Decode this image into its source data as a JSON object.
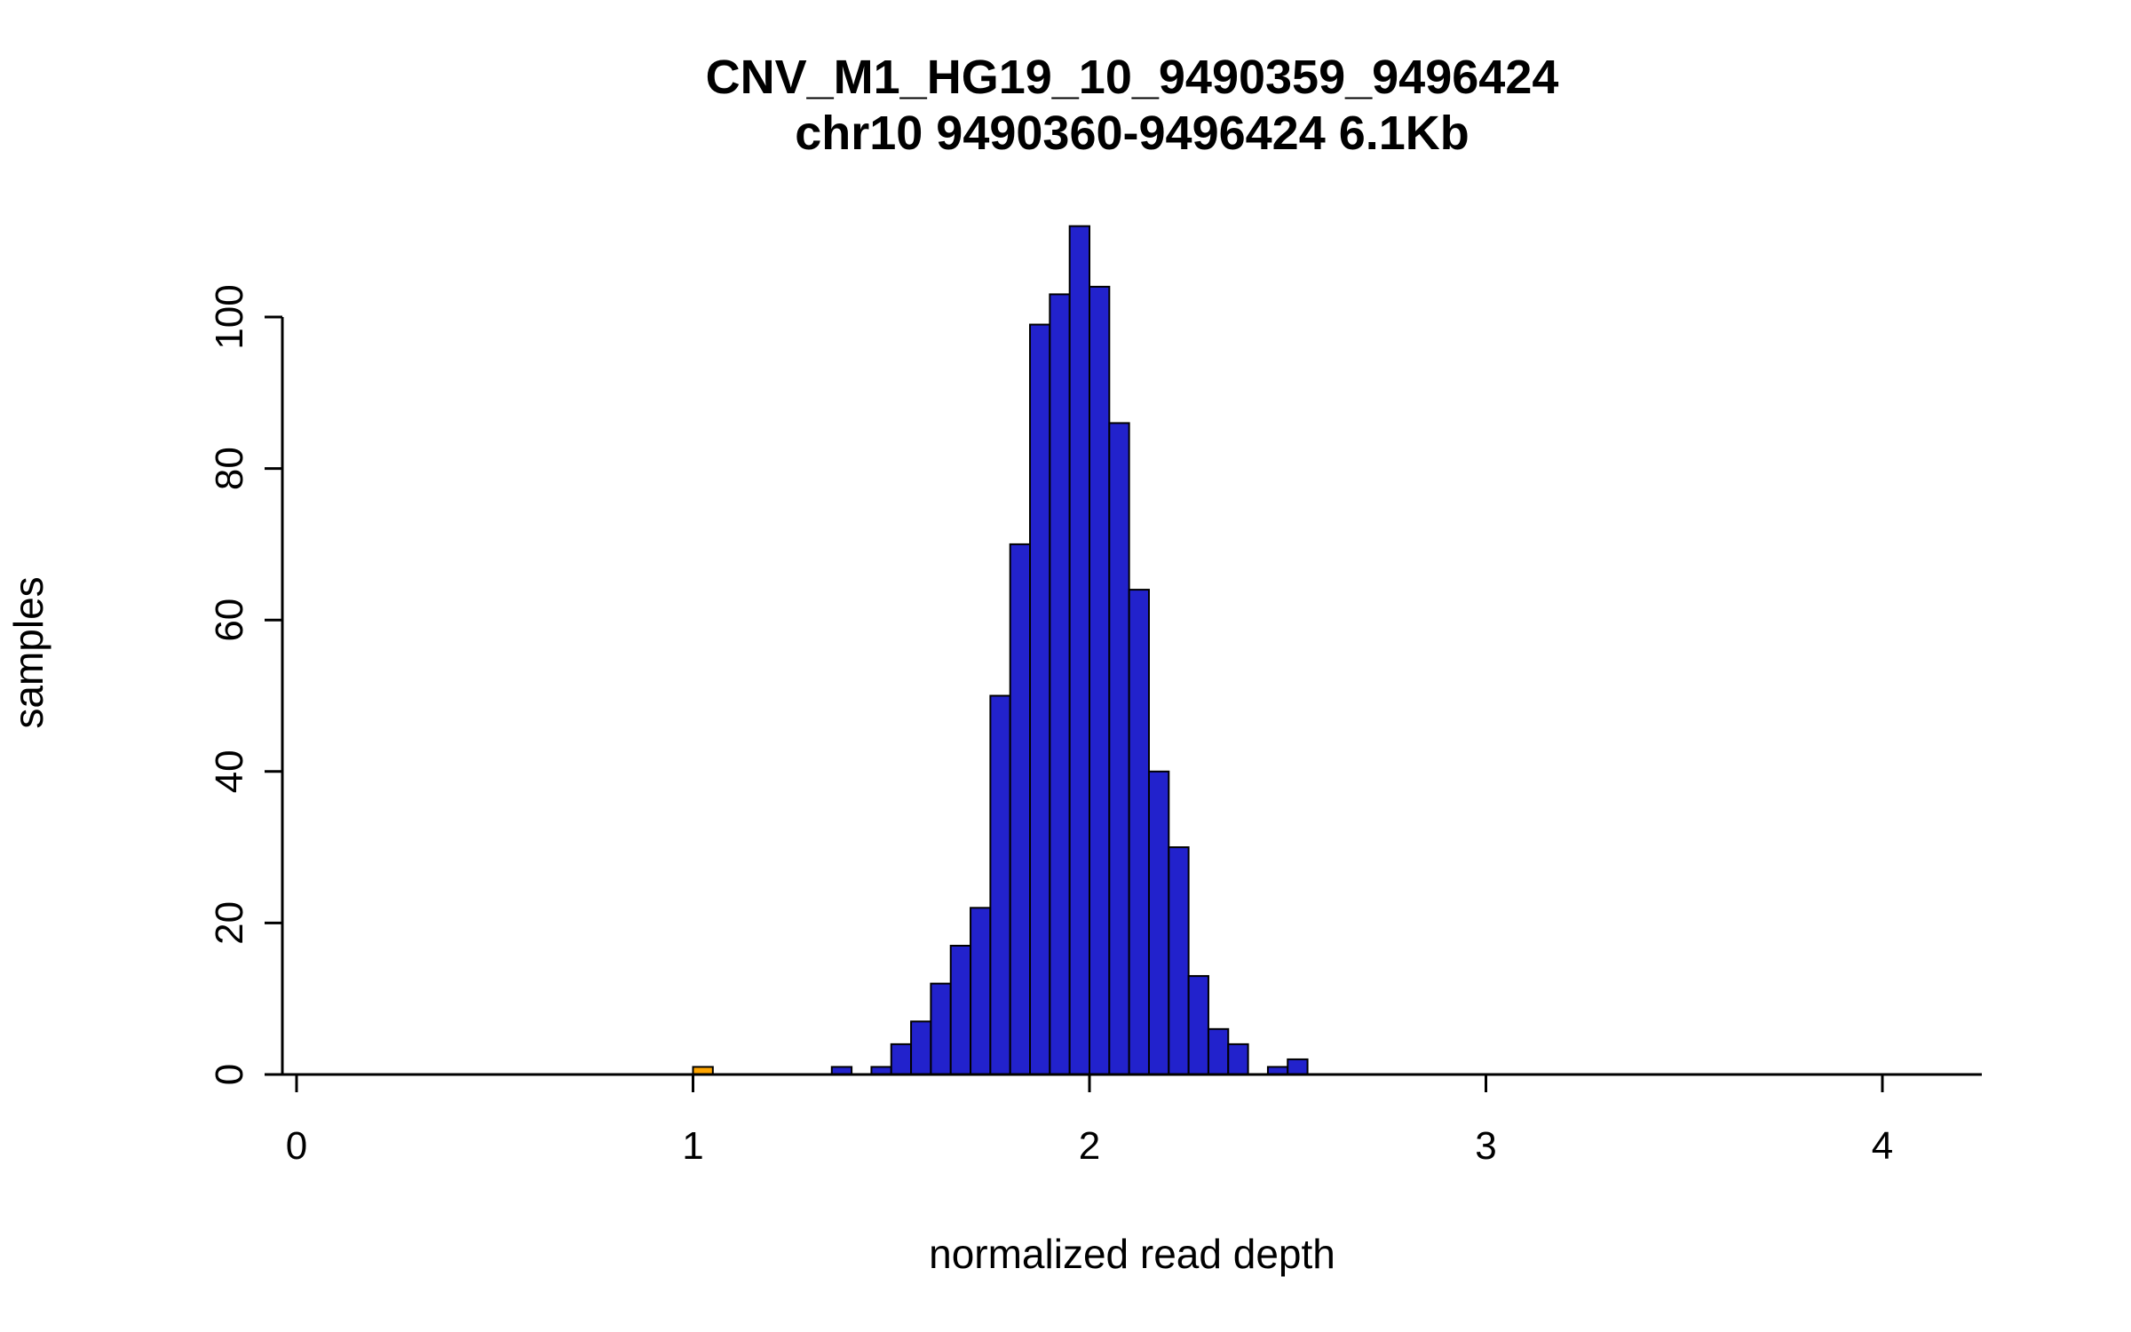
{
  "chart_data": {
    "type": "bar",
    "subtype": "histogram",
    "title": "CNV_M1_HG19_10_9490359_9496424",
    "subtitle": "chr10 9490360-9496424 6.1Kb",
    "xlabel": "normalized read depth",
    "ylabel": "samples",
    "xlim": [
      0,
      4.25
    ],
    "ylim": [
      0,
      112
    ],
    "x_ticks": [
      0,
      1,
      2,
      3,
      4
    ],
    "y_ticks": [
      0,
      20,
      40,
      60,
      80,
      100
    ],
    "bin_width": 0.05,
    "bar_fill": "#2222cc",
    "highlight_fill": "#ffa500",
    "bar_stroke": "#000000",
    "axis_color": "#000000",
    "grid": "off",
    "legend": "none",
    "bars": [
      {
        "x": 1.0,
        "count": 1,
        "highlight": true
      },
      {
        "x": 1.35,
        "count": 1,
        "highlight": false
      },
      {
        "x": 1.45,
        "count": 1,
        "highlight": false
      },
      {
        "x": 1.5,
        "count": 4,
        "highlight": false
      },
      {
        "x": 1.55,
        "count": 7,
        "highlight": false
      },
      {
        "x": 1.6,
        "count": 12,
        "highlight": false
      },
      {
        "x": 1.65,
        "count": 17,
        "highlight": false
      },
      {
        "x": 1.7,
        "count": 22,
        "highlight": false
      },
      {
        "x": 1.75,
        "count": 50,
        "highlight": false
      },
      {
        "x": 1.8,
        "count": 70,
        "highlight": false
      },
      {
        "x": 1.85,
        "count": 99,
        "highlight": false
      },
      {
        "x": 1.9,
        "count": 103,
        "highlight": false
      },
      {
        "x": 1.95,
        "count": 112,
        "highlight": false
      },
      {
        "x": 2.0,
        "count": 104,
        "highlight": false
      },
      {
        "x": 2.05,
        "count": 86,
        "highlight": false
      },
      {
        "x": 2.1,
        "count": 64,
        "highlight": false
      },
      {
        "x": 2.15,
        "count": 40,
        "highlight": false
      },
      {
        "x": 2.2,
        "count": 30,
        "highlight": false
      },
      {
        "x": 2.25,
        "count": 13,
        "highlight": false
      },
      {
        "x": 2.3,
        "count": 6,
        "highlight": false
      },
      {
        "x": 2.35,
        "count": 4,
        "highlight": false
      },
      {
        "x": 2.45,
        "count": 1,
        "highlight": false
      },
      {
        "x": 2.5,
        "count": 2,
        "highlight": false
      }
    ]
  }
}
